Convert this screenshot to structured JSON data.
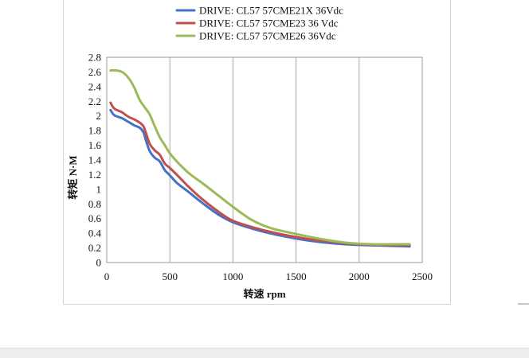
{
  "chart_data": {
    "type": "line",
    "title": "",
    "xlabel": "转速 rpm",
    "ylabel": "转矩 N·M",
    "xlim": [
      0,
      2500
    ],
    "ylim": [
      0,
      2.8
    ],
    "xticks": [
      0,
      500,
      1000,
      1500,
      2000,
      2500
    ],
    "yticks": [
      0,
      0.2,
      0.4,
      0.6,
      0.8,
      1,
      1.2,
      1.4,
      1.6,
      1.8,
      2,
      2.2,
      2.4,
      2.6,
      2.8
    ],
    "grid": "vertical",
    "legend_position": "top",
    "series": [
      {
        "name": "DRIVE: CL57 57CME21X 36Vdc",
        "color": "#4472c4",
        "x": [
          30,
          60,
          120,
          170,
          220,
          260,
          290,
          310,
          340,
          380,
          420,
          460,
          500,
          560,
          650,
          760,
          880,
          1000,
          1200,
          1400,
          1600,
          1800,
          2000,
          2200,
          2400
        ],
        "y": [
          2.08,
          2.01,
          1.97,
          1.92,
          1.87,
          1.84,
          1.78,
          1.67,
          1.52,
          1.43,
          1.38,
          1.26,
          1.19,
          1.08,
          0.96,
          0.81,
          0.66,
          0.55,
          0.44,
          0.36,
          0.3,
          0.26,
          0.24,
          0.23,
          0.22
        ]
      },
      {
        "name": "DRIVE: CL57 57CME23 36 Vdc",
        "color": "#c0504d",
        "x": [
          30,
          60,
          120,
          170,
          220,
          260,
          290,
          310,
          340,
          380,
          420,
          460,
          500,
          560,
          650,
          760,
          880,
          1000,
          1200,
          1400,
          1600,
          1800,
          2000,
          2200,
          2400
        ],
        "y": [
          2.18,
          2.1,
          2.05,
          1.99,
          1.95,
          1.91,
          1.86,
          1.77,
          1.62,
          1.53,
          1.47,
          1.35,
          1.29,
          1.19,
          1.03,
          0.86,
          0.7,
          0.57,
          0.46,
          0.38,
          0.32,
          0.28,
          0.25,
          0.24,
          0.24
        ]
      },
      {
        "name": "DRIVE: CL57 57CME26 36Vdc",
        "color": "#9bbb59",
        "x": [
          30,
          80,
          130,
          180,
          220,
          260,
          300,
          340,
          380,
          420,
          460,
          500,
          560,
          650,
          760,
          880,
          1000,
          1150,
          1300,
          1500,
          1700,
          1900,
          2100,
          2250,
          2400
        ],
        "y": [
          2.62,
          2.62,
          2.59,
          2.5,
          2.38,
          2.22,
          2.12,
          2.02,
          1.86,
          1.71,
          1.6,
          1.49,
          1.37,
          1.22,
          1.08,
          0.92,
          0.76,
          0.58,
          0.47,
          0.39,
          0.32,
          0.27,
          0.25,
          0.25,
          0.25
        ]
      }
    ]
  }
}
